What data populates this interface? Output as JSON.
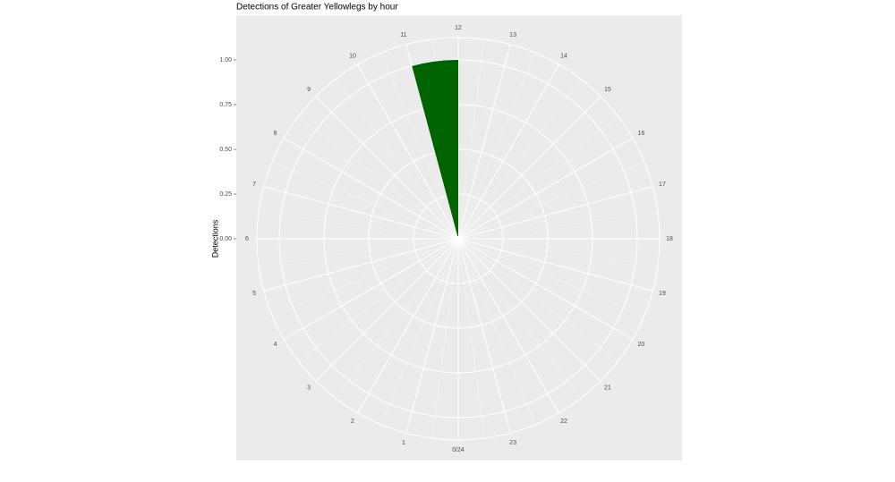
{
  "chart_data": {
    "type": "polar-histogram",
    "title": "Detections of Greater Yellowlegs by hour",
    "y_label": "Detections",
    "bins": [
      11,
      12
    ],
    "values": [
      1
    ],
    "color": "#006400",
    "xlim": [
      0,
      24
    ],
    "xticks": [
      {
        "value": 0,
        "label": "0/24"
      },
      1,
      2,
      3,
      4,
      5,
      6,
      7,
      8,
      9,
      10,
      11,
      12,
      13,
      14,
      15,
      16,
      17,
      18,
      19,
      20,
      21,
      22,
      23
    ],
    "ylim": [
      0,
      1.125
    ],
    "yticks": [
      {
        "value": 0,
        "label": "0.00"
      },
      {
        "value": 0.25,
        "label": "0.25"
      },
      {
        "value": 0.5,
        "label": "0.50"
      },
      {
        "value": 0.75,
        "label": "0.75"
      },
      {
        "value": 1,
        "label": "1.00"
      }
    ],
    "grid": true
  }
}
